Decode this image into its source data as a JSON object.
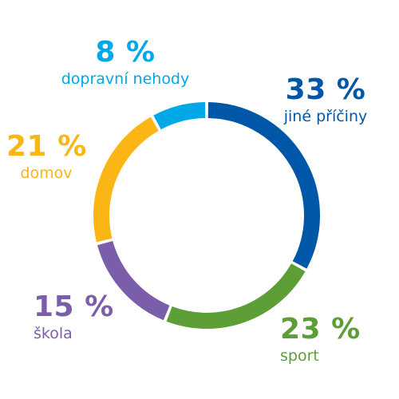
{
  "chart_data": {
    "type": "pie",
    "variant": "donut",
    "title": "",
    "slices": [
      {
        "key": "jine",
        "label": "jiné příčiny",
        "value": 33,
        "value_label": "33 %",
        "color": "#0057A8"
      },
      {
        "key": "sport",
        "label": "sport",
        "value": 23,
        "value_label": "23 %",
        "color": "#5E9E37"
      },
      {
        "key": "skola",
        "label": "škola",
        "value": 15,
        "value_label": "15 %",
        "color": "#7B5EAA"
      },
      {
        "key": "domov",
        "label": "domov",
        "value": 21,
        "value_label": "21 %",
        "color": "#FBB515"
      },
      {
        "key": "doprava",
        "label": "dopravní nehody",
        "value": 8,
        "value_label": "8 %",
        "color": "#00A8E8"
      }
    ]
  }
}
